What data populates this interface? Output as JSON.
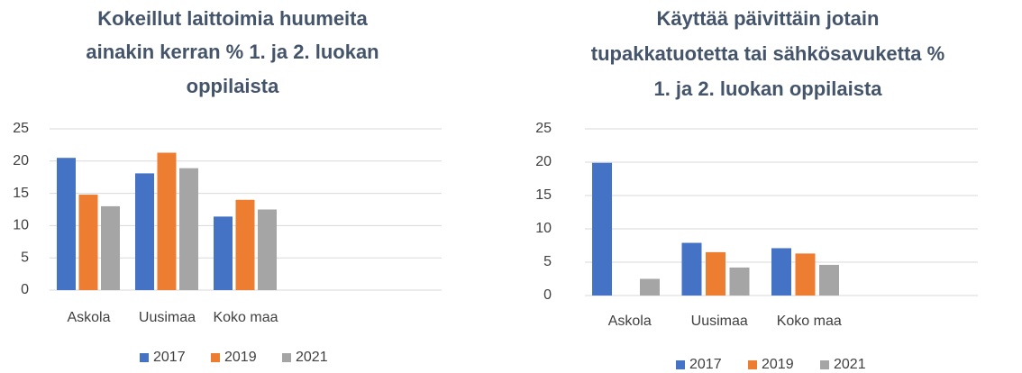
{
  "chart_data": [
    {
      "type": "bar",
      "title": [
        "Kokeillut laittoimia huumeita",
        "ainakin kerran % 1. ja 2. luokan",
        "oppilaista"
      ],
      "categories": [
        "Askola",
        "Uusimaa",
        "Koko maa",
        null,
        null
      ],
      "series": [
        {
          "name": "2017",
          "color": "#4472c4",
          "values": [
            20.5,
            18.1,
            11.4,
            null,
            null
          ]
        },
        {
          "name": "2019",
          "color": "#ed7d31",
          "values": [
            14.8,
            21.3,
            14.0,
            null,
            null
          ]
        },
        {
          "name": "2021",
          "color": "#a5a5a5",
          "values": [
            13.0,
            18.9,
            12.5,
            null,
            null
          ]
        }
      ],
      "ylim": [
        0,
        25
      ],
      "yticks": [
        0,
        5,
        10,
        15,
        20,
        25
      ],
      "grid": true,
      "legend": "bottom"
    },
    {
      "type": "bar",
      "title": [
        "Käyttää päivittäin jotain",
        "tupakkatuotetta tai sähkösavuketta %",
        "1. ja 2. luokan oppilaista"
      ],
      "categories": [
        "Askola",
        "Uusimaa",
        "Koko maa",
        null
      ],
      "series": [
        {
          "name": "2017",
          "color": "#4472c4",
          "values": [
            19.9,
            7.9,
            7.1,
            null
          ]
        },
        {
          "name": "2019",
          "color": "#ed7d31",
          "values": [
            null,
            6.5,
            6.3,
            null
          ]
        },
        {
          "name": "2021",
          "color": "#a5a5a5",
          "values": [
            2.5,
            4.2,
            4.6,
            null
          ]
        }
      ],
      "ylim": [
        0,
        25
      ],
      "yticks": [
        0,
        5,
        10,
        15,
        20,
        25
      ],
      "grid": true,
      "legend": "bottom"
    }
  ]
}
